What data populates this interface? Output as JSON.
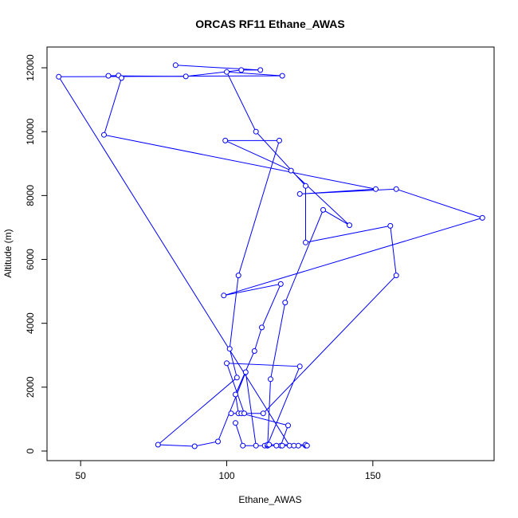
{
  "chart_data": {
    "type": "scatter",
    "title": "ORCAS RF11 Ethane_AWAS",
    "xlabel": "Ethane_AWAS",
    "ylabel": "Altitude (m)",
    "xlim": [
      38.5,
      191.5
    ],
    "ylim": [
      -300,
      12650
    ],
    "xticks": [
      50,
      100,
      150
    ],
    "yticks": [
      0,
      2000,
      4000,
      6000,
      8000,
      10000,
      12000
    ],
    "grid": false,
    "legend": "none",
    "style": "points connected by lines",
    "color": "#0000ff",
    "series": [
      {
        "x": [
          82.5,
          111.5,
          105,
          86,
          59.5,
          63,
          64,
          58,
          151,
          125,
          158,
          187.5,
          99,
          118.5,
          112,
          109.5,
          103,
          104,
          101.5,
          105,
          121,
          118.5,
          113,
          124.5,
          119,
          117,
          114,
          115,
          120,
          133,
          142,
          122,
          99.5,
          118,
          104,
          101,
          103.5,
          76.5,
          89,
          97,
          106.5,
          110,
          114,
          127,
          121.5,
          42.5,
          119,
          100,
          110,
          127,
          127,
          156,
          158,
          112.5,
          106,
          100,
          125,
          114,
          114.5,
          127,
          127.5,
          123,
          105.5,
          103
        ],
        "y": [
          12080,
          11930,
          11930,
          11730,
          11750,
          11760,
          11680,
          9900,
          8200,
          8050,
          8200,
          7300,
          4870,
          5230,
          3870,
          3130,
          1770,
          1180,
          1180,
          1180,
          800,
          170,
          170,
          170,
          170,
          170,
          170,
          2250,
          4650,
          7550,
          7070,
          8780,
          9720,
          9720,
          5500,
          3200,
          2300,
          200,
          150,
          300,
          2470,
          170,
          170,
          170,
          170,
          11720,
          11750,
          11870,
          10000,
          8300,
          6530,
          7050,
          5500,
          1180,
          1180,
          2750,
          2650,
          200,
          200,
          200,
          170,
          170,
          170,
          880
        ]
      }
    ]
  }
}
